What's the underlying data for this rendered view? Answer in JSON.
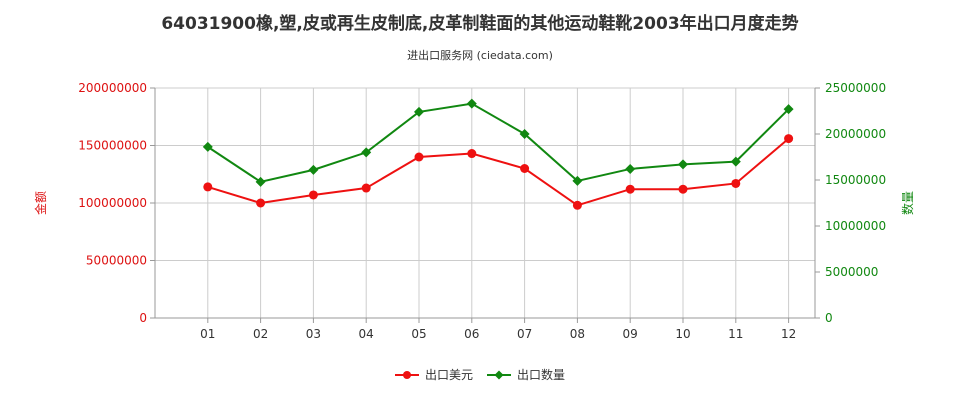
{
  "chart_data": {
    "type": "line",
    "title": "64031900橡,塑,皮或再生皮制底,皮革制鞋面的其他运动鞋靴2003年出口月度走势",
    "subtitle": "进出口服务网 (ciedata.com)",
    "categories": [
      "01",
      "02",
      "03",
      "04",
      "05",
      "06",
      "07",
      "08",
      "09",
      "10",
      "11",
      "12"
    ],
    "y_left": {
      "label": "金额",
      "ylim": [
        0,
        200000000
      ],
      "ticks": [
        "0",
        "50000000",
        "100000000",
        "150000000",
        "200000000"
      ],
      "color": "#dd1111"
    },
    "y_right": {
      "label": "数量",
      "ylim": [
        0,
        25000000
      ],
      "ticks": [
        "0",
        "5000000",
        "10000000",
        "15000000",
        "20000000",
        "25000000"
      ],
      "color": "#118811"
    },
    "series": [
      {
        "name": "出口美元",
        "axis": "left",
        "color": "#ee1111",
        "values": [
          114000000,
          100000000,
          107000000,
          113000000,
          140000000,
          143000000,
          130000000,
          98000000,
          112000000,
          112000000,
          117000000,
          156000000
        ]
      },
      {
        "name": "出口数量",
        "axis": "right",
        "color": "#118811",
        "values": [
          18600000,
          14800000,
          16100000,
          18000000,
          22400000,
          23300000,
          20000000,
          14900000,
          16200000,
          16700000,
          17000000,
          22700000
        ]
      }
    ],
    "grid": true,
    "legend_position": "bottom"
  }
}
